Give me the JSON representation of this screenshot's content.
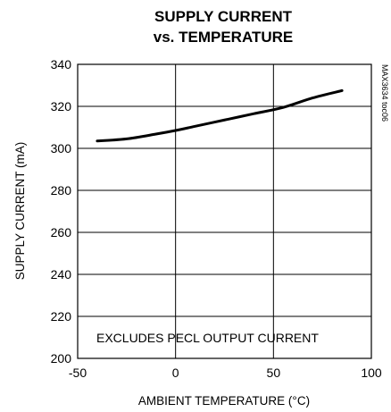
{
  "chart_data": {
    "type": "line",
    "title_lines": [
      "SUPPLY CURRENT",
      "vs. TEMPERATURE"
    ],
    "xlabel": "AMBIENT TEMPERATURE (°C)",
    "ylabel": "SUPPLY CURRENT (mA)",
    "xlim": [
      -50,
      100
    ],
    "ylim": [
      200,
      340
    ],
    "x_ticks": [
      -50,
      0,
      50,
      100
    ],
    "y_ticks": [
      200,
      220,
      240,
      260,
      280,
      300,
      320,
      340
    ],
    "grid": true,
    "annotation": "EXCLUDES PECL OUTPUT CURRENT",
    "figure_id": "MAX3634 toc06",
    "series": [
      {
        "x": [
          -40,
          -25,
          -10,
          0,
          10,
          25,
          40,
          55,
          70,
          85
        ],
        "y": [
          303.5,
          304.5,
          306.8,
          308.5,
          310.5,
          313.5,
          316.5,
          319.5,
          324,
          327.5
        ]
      }
    ]
  }
}
